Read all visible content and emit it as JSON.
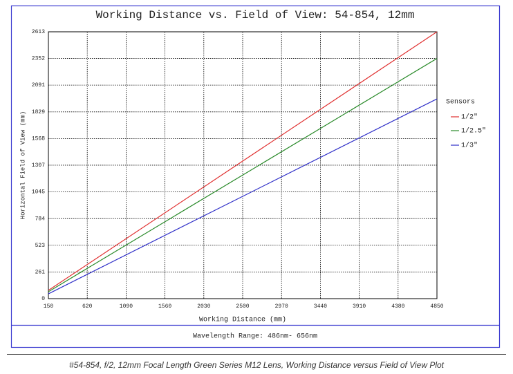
{
  "chart_data": {
    "type": "line",
    "title": "Working Distance vs. Field of View: 54-854, 12mm",
    "xlabel": "Working Distance (mm)",
    "ylabel": "Horizontal Field of View (mm)",
    "legend_title": "Sensors",
    "note": "Wavelength Range:  486nm- 656nm",
    "x": [
      150,
      4850
    ],
    "series": [
      {
        "name": "1/2\"",
        "color": "#e03030",
        "values": [
          81,
          2613
        ]
      },
      {
        "name": "1/2.5\"",
        "color": "#2a8a2a",
        "values": [
          68,
          2352
        ]
      },
      {
        "name": "1/3\"",
        "color": "#3030c8",
        "values": [
          47,
          1956
        ]
      }
    ],
    "xlim": [
      150,
      4850
    ],
    "ylim": [
      0,
      2613
    ],
    "xticks": [
      150,
      620,
      1090,
      1560,
      2030,
      2500,
      2970,
      3440,
      3910,
      4380,
      4850
    ],
    "yticks": [
      0,
      261,
      523,
      784,
      1045,
      1307,
      1568,
      1829,
      2091,
      2352,
      2613
    ],
    "grid": true
  },
  "caption": "#54-854, f/2, 12mm Focal Length Green Series M12 Lens, Working Distance versus Field of View Plot"
}
